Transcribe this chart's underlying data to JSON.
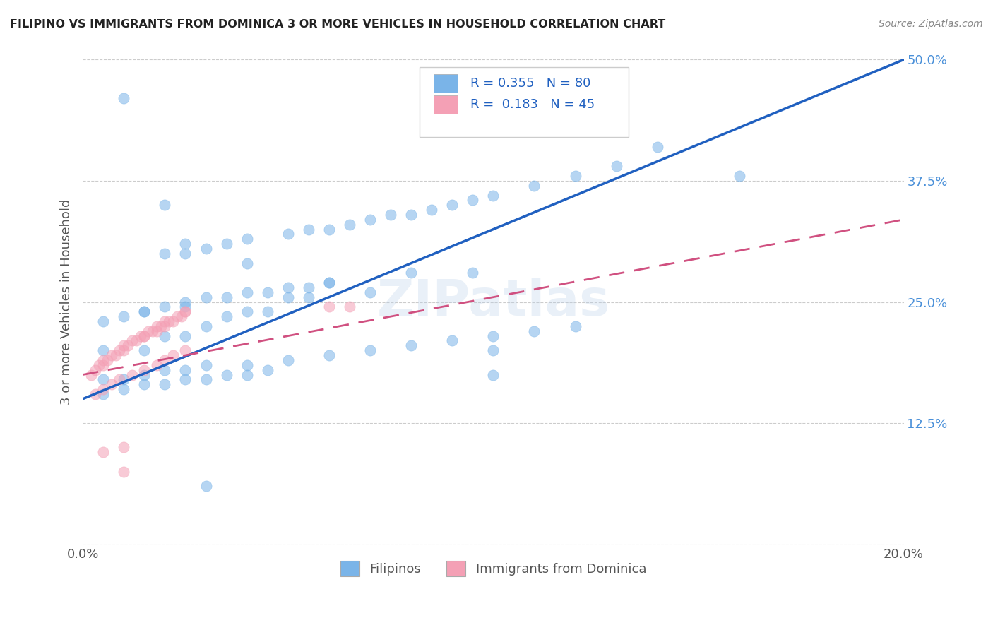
{
  "title": "FILIPINO VS IMMIGRANTS FROM DOMINICA 3 OR MORE VEHICLES IN HOUSEHOLD CORRELATION CHART",
  "source": "Source: ZipAtlas.com",
  "ylabel": "3 or more Vehicles in Household",
  "xlim": [
    0.0,
    0.2
  ],
  "ylim": [
    0.0,
    0.5
  ],
  "xticks": [
    0.0,
    0.05,
    0.1,
    0.15,
    0.2
  ],
  "yticks": [
    0.0,
    0.125,
    0.25,
    0.375,
    0.5
  ],
  "xticklabels": [
    "0.0%",
    "",
    "",
    "",
    "20.0%"
  ],
  "yticklabels": [
    "",
    "12.5%",
    "25.0%",
    "37.5%",
    "50.0%"
  ],
  "R_blue": 0.355,
  "N_blue": 80,
  "R_pink": 0.183,
  "N_pink": 45,
  "legend_label_blue": "Filipinos",
  "legend_label_pink": "Immigrants from Dominica",
  "blue_color": "#7ab4e8",
  "pink_color": "#f4a0b5",
  "trend_blue_color": "#2060c0",
  "trend_pink_color": "#d05080",
  "watermark": "ZIPatlas",
  "blue_scatter_x": [
    0.01,
    0.02,
    0.025,
    0.04,
    0.06,
    0.07,
    0.08,
    0.095,
    0.1,
    0.1,
    0.005,
    0.015,
    0.02,
    0.025,
    0.03,
    0.035,
    0.04,
    0.045,
    0.05,
    0.055,
    0.015,
    0.02,
    0.025,
    0.03,
    0.035,
    0.04,
    0.045,
    0.05,
    0.055,
    0.06,
    0.005,
    0.01,
    0.015,
    0.02,
    0.025,
    0.03,
    0.005,
    0.01,
    0.015,
    0.02,
    0.025,
    0.03,
    0.035,
    0.04,
    0.045,
    0.02,
    0.025,
    0.03,
    0.035,
    0.04,
    0.05,
    0.055,
    0.06,
    0.065,
    0.07,
    0.075,
    0.08,
    0.085,
    0.09,
    0.095,
    0.1,
    0.11,
    0.12,
    0.13,
    0.14,
    0.04,
    0.05,
    0.06,
    0.07,
    0.08,
    0.09,
    0.1,
    0.11,
    0.12,
    0.16,
    0.005,
    0.01,
    0.015,
    0.025,
    0.03
  ],
  "blue_scatter_y": [
    0.46,
    0.35,
    0.31,
    0.29,
    0.27,
    0.26,
    0.28,
    0.28,
    0.2,
    0.175,
    0.2,
    0.2,
    0.215,
    0.215,
    0.225,
    0.235,
    0.24,
    0.24,
    0.255,
    0.255,
    0.24,
    0.245,
    0.25,
    0.255,
    0.255,
    0.26,
    0.26,
    0.265,
    0.265,
    0.27,
    0.17,
    0.17,
    0.175,
    0.18,
    0.18,
    0.185,
    0.155,
    0.16,
    0.165,
    0.165,
    0.17,
    0.17,
    0.175,
    0.175,
    0.18,
    0.3,
    0.3,
    0.305,
    0.31,
    0.315,
    0.32,
    0.325,
    0.325,
    0.33,
    0.335,
    0.34,
    0.34,
    0.345,
    0.35,
    0.355,
    0.36,
    0.37,
    0.38,
    0.39,
    0.41,
    0.185,
    0.19,
    0.195,
    0.2,
    0.205,
    0.21,
    0.215,
    0.22,
    0.225,
    0.38,
    0.23,
    0.235,
    0.24,
    0.245,
    0.06
  ],
  "pink_scatter_x": [
    0.002,
    0.003,
    0.004,
    0.005,
    0.005,
    0.006,
    0.007,
    0.008,
    0.009,
    0.01,
    0.01,
    0.011,
    0.012,
    0.013,
    0.014,
    0.015,
    0.015,
    0.016,
    0.017,
    0.018,
    0.018,
    0.019,
    0.02,
    0.02,
    0.021,
    0.022,
    0.023,
    0.024,
    0.025,
    0.025,
    0.003,
    0.005,
    0.007,
    0.009,
    0.012,
    0.015,
    0.018,
    0.02,
    0.022,
    0.025,
    0.005,
    0.01,
    0.06,
    0.065,
    0.01
  ],
  "pink_scatter_y": [
    0.175,
    0.18,
    0.185,
    0.185,
    0.19,
    0.19,
    0.195,
    0.195,
    0.2,
    0.2,
    0.205,
    0.205,
    0.21,
    0.21,
    0.215,
    0.215,
    0.215,
    0.22,
    0.22,
    0.22,
    0.225,
    0.225,
    0.225,
    0.23,
    0.23,
    0.23,
    0.235,
    0.235,
    0.24,
    0.24,
    0.155,
    0.16,
    0.165,
    0.17,
    0.175,
    0.18,
    0.185,
    0.19,
    0.195,
    0.2,
    0.095,
    0.1,
    0.245,
    0.245,
    0.075
  ],
  "blue_trend_x0": 0.0,
  "blue_trend_y0": 0.15,
  "blue_trend_x1": 0.2,
  "blue_trend_y1": 0.5,
  "pink_trend_x0": 0.0,
  "pink_trend_y0": 0.175,
  "pink_trend_x1": 0.2,
  "pink_trend_y1": 0.335
}
